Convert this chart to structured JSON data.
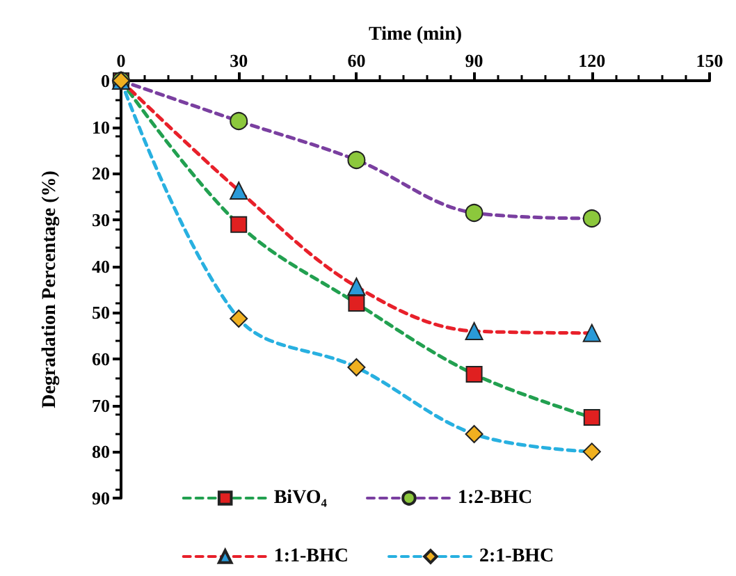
{
  "chart_data": {
    "type": "line",
    "xlabel": "Time (min)",
    "ylabel": "Degradation Percentage (%)",
    "x": [
      0,
      30,
      60,
      90,
      120
    ],
    "xlim": [
      0,
      150
    ],
    "xticks": [
      0,
      30,
      60,
      90,
      120,
      150
    ],
    "ylim": [
      90,
      0
    ],
    "yticks": [
      0,
      10,
      20,
      30,
      40,
      50,
      60,
      70,
      80,
      90
    ],
    "grid": false,
    "legend": "bottom",
    "line_style": "dashed",
    "series": [
      {
        "name": "BiVO₄",
        "color": "#22a050",
        "marker": "square",
        "colors": [
          "#e02020",
          "#e02020",
          "#e02020",
          "#e02020",
          "#e02020"
        ],
        "values": [
          0,
          31,
          48,
          63.3,
          72.6
        ]
      },
      {
        "name": "1:2-BHC",
        "color": "#7a3fa0",
        "marker": "circle",
        "colors": [
          "#8cc83c",
          "#8cc83c",
          "#8cc83c",
          "#8cc83c",
          "#8cc83c"
        ],
        "values": [
          0,
          8.7,
          17.1,
          28.5,
          29.7
        ]
      },
      {
        "name": "1:1-BHC",
        "color": "#e8202a",
        "marker": "triangle",
        "colors": [
          "#2a9ad8",
          "#2a9ad8",
          "#2a9ad8",
          "#2a9ad8",
          "#2a9ad8"
        ],
        "values": [
          0,
          23.7,
          44.4,
          54,
          54.4
        ]
      },
      {
        "name": "2:1-BHC",
        "color": "#28b0e0",
        "marker": "diamond",
        "colors": [
          "#f0b020",
          "#f0b020",
          "#f0b020",
          "#f0b020",
          "#f0b020"
        ],
        "values": [
          0,
          51.3,
          61.8,
          76.2,
          80
        ]
      }
    ]
  }
}
